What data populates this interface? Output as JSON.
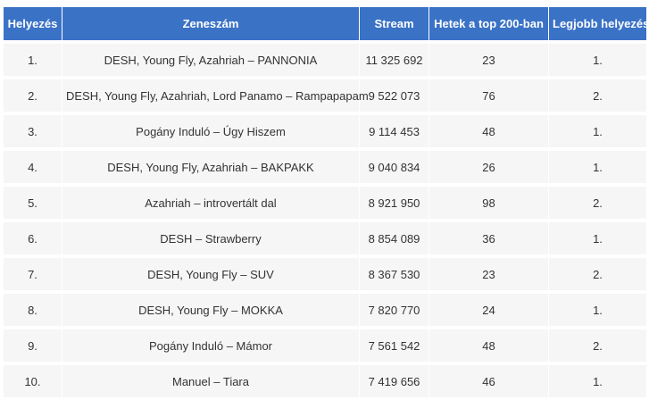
{
  "colors": {
    "header_bg": "#3a72c6",
    "header_text": "#ffffff",
    "row_bg": "#f6f6f7",
    "cell_text": "#333333"
  },
  "table": {
    "headers": [
      "Helyezés",
      "Zeneszám",
      "Stream",
      "Hetek a top 200-ban",
      "Legjobb helyezés"
    ],
    "rows": [
      [
        "1.",
        "DESH, Young Fly, Azahriah – PANNONIA",
        "11 325 692",
        "23",
        "1."
      ],
      [
        "2.",
        "DESH, Young Fly, Azahriah, Lord Panamo – Rampapapam",
        "9 522 073",
        "76",
        "2."
      ],
      [
        "3.",
        "Pogány Induló – Úgy Hiszem",
        "9 114 453",
        "48",
        "1."
      ],
      [
        "4.",
        "DESH, Young Fly, Azahriah – BAKPAKK",
        "9 040 834",
        "26",
        "1."
      ],
      [
        "5.",
        "Azahriah – introvertált dal",
        "8 921 950",
        "98",
        "2."
      ],
      [
        "6.",
        "DESH – Strawberry",
        "8 854 089",
        "36",
        "1."
      ],
      [
        "7.",
        "DESH, Young Fly – SUV",
        "8 367 530",
        "23",
        "2."
      ],
      [
        "8.",
        "DESH, Young Fly – MOKKA",
        "7 820 770",
        "24",
        "1."
      ],
      [
        "9.",
        "Pogány Induló – Mámor",
        "7 561 542",
        "48",
        "2."
      ],
      [
        "10.",
        "Manuel – Tiara",
        "7 419 656",
        "46",
        "1."
      ]
    ]
  }
}
